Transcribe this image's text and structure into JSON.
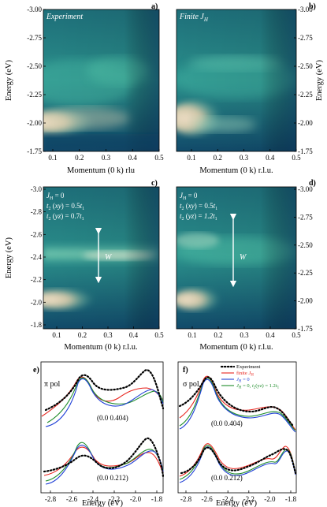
{
  "panels": [
    {
      "id": "a",
      "letter": "a)",
      "annotation": "Experiment",
      "xlabel": "Momentum (0 k) rlu",
      "ylabel": "Energy (eV)",
      "yticks": [
        "-3.00",
        "-2.75",
        "-2.50",
        "-2.25",
        "-2.00",
        "-1.75"
      ],
      "xticks": [
        "0.1",
        "0.2",
        "0.3",
        "0.4",
        "0.5"
      ]
    },
    {
      "id": "b",
      "letter": "b)",
      "annotation": "Finite J",
      "annotation_sub": "H",
      "xlabel": "Momentum (0 k) r.l.u.",
      "ylabel": "Energy (eV)",
      "yticks": [
        "-3.00",
        "-2.75",
        "-2.50",
        "-2.25",
        "-2.00",
        "-1.75"
      ],
      "xticks": [
        "0.1",
        "0.2",
        "0.3",
        "0.4",
        "0.5"
      ]
    },
    {
      "id": "c",
      "letter": "c)",
      "annotation_lines": [
        "J_H = 0",
        "t_2 (xy) = 0.5t_1",
        "t_2 (yz) = 0.7t_1"
      ],
      "w_label": "W",
      "xlabel": "Momentum (0 k) r.l.u.",
      "ylabel": "Energy (eV)",
      "yticks": [
        "-3.0",
        "-2.8",
        "-2.6",
        "-2.4",
        "-2.2",
        "-2.0",
        "-1.8"
      ],
      "xticks": [
        "0.1",
        "0.2",
        "0.3",
        "0.4",
        "0.5"
      ]
    },
    {
      "id": "d",
      "letter": "d)",
      "annotation_lines": [
        "J_H = 0",
        "t_2 (xy) = 0.5t_1",
        "t_2 (yz) = 1.2t_1"
      ],
      "w_label": "W",
      "xlabel": "Momentum (0 k) r.l.u.",
      "ylabel": "Energy (eV)",
      "yticks": [
        "-3.00",
        "-2.75",
        "-2.50",
        "-2.25",
        "-2.00",
        "-1.75"
      ],
      "xticks": [
        "0.1",
        "0.2",
        "0.3",
        "0.4",
        "0.5"
      ]
    },
    {
      "id": "e",
      "letter": "e)",
      "pol": "π pol",
      "label_top": "(0.0  0.404)",
      "label_bottom": "(0.0  0.212)",
      "xlabel": "Energy (eV)",
      "xticks": [
        "-2.8",
        "-2.6",
        "-2.4",
        "-2.2",
        "-2.0",
        "-1.8"
      ]
    },
    {
      "id": "f",
      "letter": "f)",
      "pol": "σ pol",
      "label_top": "(0.0  0.404)",
      "label_bottom": "(0.0  0.212)",
      "xlabel": "Energy (eV)",
      "xticks": [
        "-2.8",
        "-2.6",
        "-2.4",
        "-2.2",
        "-2.0",
        "-1.8"
      ]
    }
  ],
  "legend": [
    {
      "label": "Experiment",
      "color": "#000000",
      "style": "dotted"
    },
    {
      "label": "finite J_H",
      "color": "#e8251e",
      "style": "solid"
    },
    {
      "label": "J_H = 0",
      "color": "#1f3fd6",
      "style": "solid"
    },
    {
      "label": "J_H = 0,  t_2(yz) = 1.2t_1",
      "color": "#1e8c2a",
      "style": "solid"
    }
  ],
  "colors": {
    "heatmap_low": "#0d3b5e",
    "heatmap_mid": "#2fa39a",
    "heatmap_high": "#e8d7c0"
  }
}
